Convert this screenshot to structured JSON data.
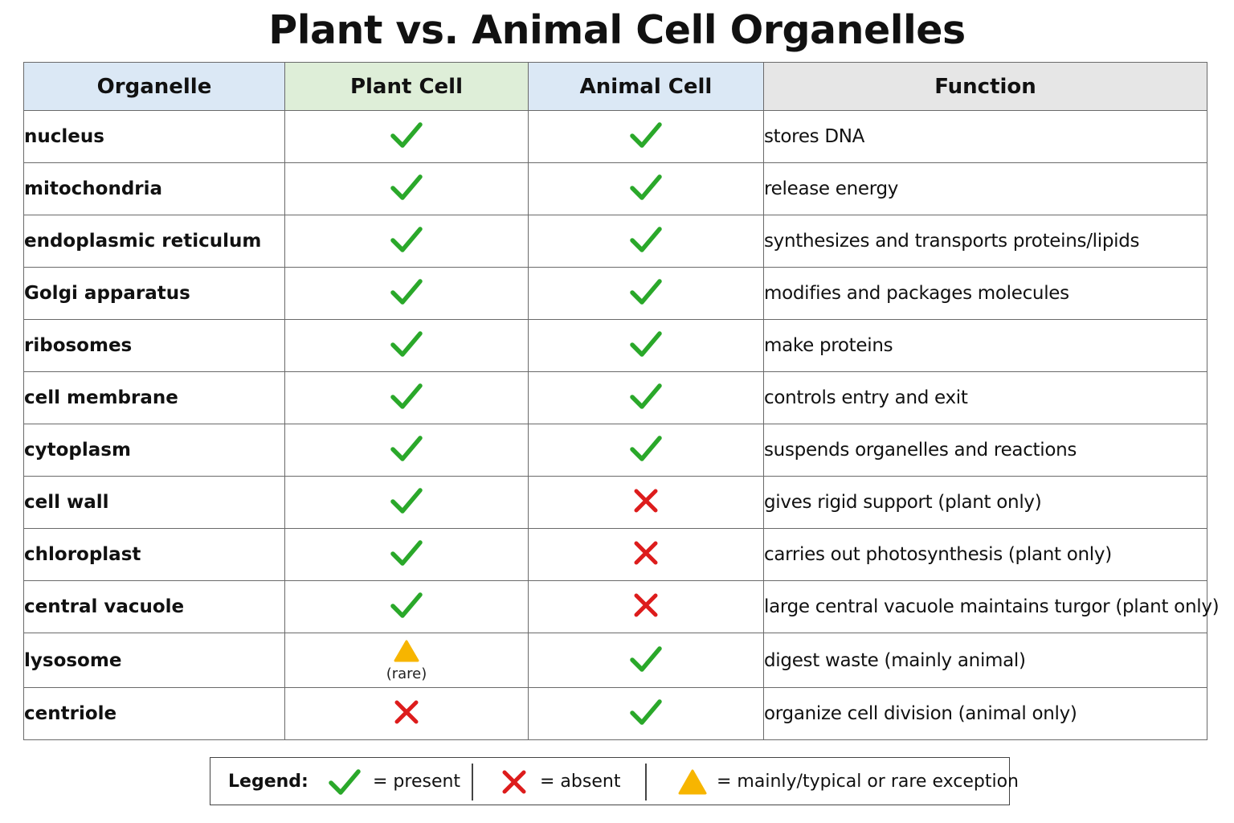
{
  "title": "Plant vs. Animal Cell Organelles",
  "colors": {
    "check": "#2aa82a",
    "cross": "#dd1c1c",
    "warning": "#f7b500",
    "header_blue": "#dbe8f5",
    "header_green": "#deeed8",
    "header_gray": "#e6e6e6"
  },
  "table": {
    "headers": [
      "Organelle",
      "Plant Cell",
      "Animal Cell",
      "Function"
    ],
    "rows": [
      {
        "organelle": "nucleus",
        "plant": "present",
        "animal": "present",
        "function": "stores DNA"
      },
      {
        "organelle": "mitochondria",
        "plant": "present",
        "animal": "present",
        "function": "release energy"
      },
      {
        "organelle": "endoplasmic reticulum",
        "plant": "present",
        "animal": "present",
        "function": "synthesizes and transports proteins/lipids"
      },
      {
        "organelle": "Golgi apparatus",
        "plant": "present",
        "animal": "present",
        "function": "modifies and packages molecules"
      },
      {
        "organelle": "ribosomes",
        "plant": "present",
        "animal": "present",
        "function": "make proteins"
      },
      {
        "organelle": "cell membrane",
        "plant": "present",
        "animal": "present",
        "function": "controls entry and exit"
      },
      {
        "organelle": "cytoplasm",
        "plant": "present",
        "animal": "present",
        "function": "suspends organelles and reactions"
      },
      {
        "organelle": "cell wall",
        "plant": "present",
        "animal": "absent",
        "function": "gives rigid support (plant only)"
      },
      {
        "organelle": "chloroplast",
        "plant": "present",
        "animal": "absent",
        "function": "carries out photosynthesis (plant only)"
      },
      {
        "organelle": "central vacuole",
        "plant": "present",
        "animal": "absent",
        "function": "large central vacuole maintains turgor (plant only)"
      },
      {
        "organelle": "lysosome",
        "plant": "rare",
        "plant_note": "(rare)",
        "animal": "present",
        "function": "digest waste (mainly animal)"
      },
      {
        "organelle": "centriole",
        "plant": "absent",
        "animal": "present",
        "function": "organize cell division (animal only)"
      }
    ]
  },
  "legend": {
    "label": "Legend:",
    "present": "= present",
    "absent": "= absent",
    "rare": "= mainly/typical or rare exception",
    "icons": [
      "check-icon",
      "cross-icon",
      "warning-triangle-icon"
    ]
  }
}
